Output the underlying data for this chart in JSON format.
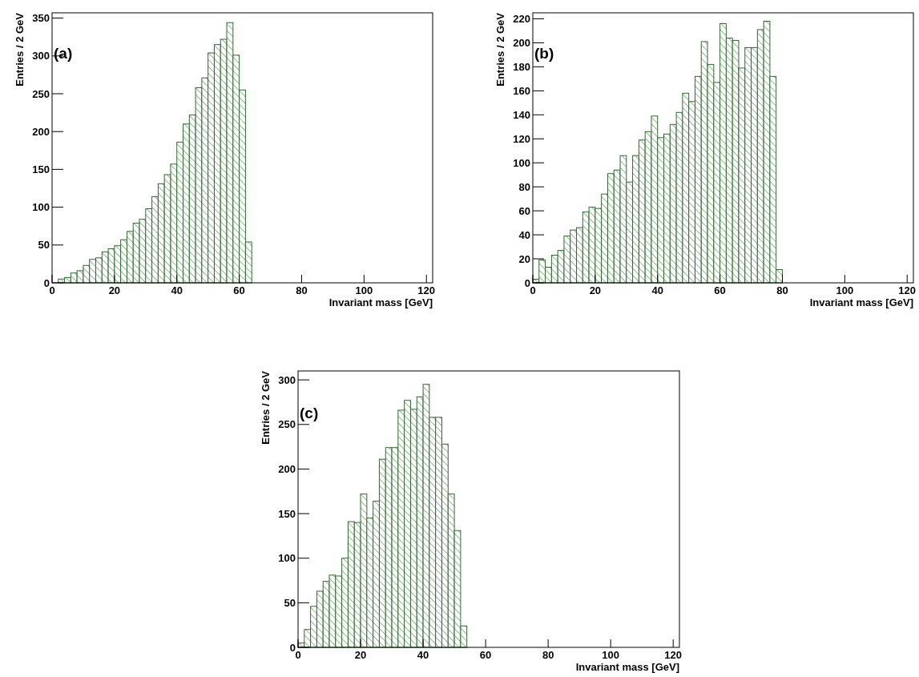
{
  "chart_data": [
    {
      "type": "histogram",
      "annotations": [
        "(a)"
      ],
      "xlabel": "Invariant mass [GeV]",
      "ylabel": "Entries / 2 GeV",
      "color": "#2f6b2f",
      "bins": [
        2,
        4,
        6,
        8,
        10,
        12,
        14,
        16,
        18,
        20,
        22,
        24,
        26,
        28,
        30,
        32,
        34,
        36,
        38,
        40,
        42,
        44,
        46,
        48,
        50,
        52,
        54,
        56,
        58,
        60,
        62,
        64
      ],
      "values": [
        5,
        7,
        13,
        16,
        23,
        31,
        33,
        41,
        45,
        49,
        57,
        68,
        79,
        84,
        98,
        114,
        131,
        143,
        157,
        186,
        210,
        222,
        258,
        271,
        304,
        315,
        322,
        344,
        301,
        255,
        54
      ],
      "xlim": [
        0,
        122
      ],
      "xticks": [
        0,
        20,
        40,
        60,
        80,
        100,
        120
      ],
      "ylim": [
        0,
        357
      ],
      "yticks": [
        0,
        50,
        100,
        150,
        200,
        250,
        300,
        350
      ],
      "grid": false
    },
    {
      "type": "histogram",
      "annotations": [
        "(b)"
      ],
      "xlabel": "Invariant mass [GeV]",
      "ylabel": "Entries / 2 GeV",
      "color": "#2f6b2f",
      "bins": [
        0,
        2,
        4,
        6,
        8,
        10,
        12,
        14,
        16,
        18,
        20,
        22,
        24,
        26,
        28,
        30,
        32,
        34,
        36,
        38,
        40,
        42,
        44,
        46,
        48,
        50,
        52,
        54,
        56,
        58,
        60,
        62,
        64,
        66,
        68,
        70,
        72,
        74,
        76,
        78,
        80
      ],
      "values": [
        3,
        19,
        13,
        23,
        27,
        39,
        44,
        46,
        59,
        63,
        62,
        74,
        91,
        94,
        106,
        84,
        106,
        119,
        126,
        139,
        121,
        124,
        132,
        142,
        158,
        151,
        172,
        201,
        182,
        167,
        216,
        204,
        202,
        179,
        196,
        196,
        211,
        218,
        172,
        11
      ],
      "xlim": [
        0,
        122
      ],
      "xticks": [
        0,
        20,
        40,
        60,
        80,
        100,
        120
      ],
      "ylim": [
        0,
        225
      ],
      "yticks": [
        0,
        20,
        40,
        60,
        80,
        100,
        120,
        140,
        160,
        180,
        200,
        220
      ],
      "grid": false
    },
    {
      "type": "histogram",
      "annotations": [
        "(c)"
      ],
      "xlabel": "Invariant mass [GeV]",
      "ylabel": "Entries / 2 GeV",
      "color": "#2f6b2f",
      "bins": [
        0,
        2,
        4,
        6,
        8,
        10,
        12,
        14,
        16,
        18,
        20,
        22,
        24,
        26,
        28,
        30,
        32,
        34,
        36,
        38,
        40,
        42,
        44,
        46,
        48,
        50,
        52,
        54
      ],
      "values": [
        5,
        20,
        46,
        63,
        74,
        81,
        80,
        100,
        141,
        140,
        172,
        145,
        164,
        211,
        224,
        224,
        266,
        277,
        267,
        281,
        295,
        258,
        258,
        228,
        172,
        131,
        24
      ],
      "xlim": [
        0,
        122
      ],
      "xticks": [
        0,
        20,
        40,
        60,
        80,
        100,
        120
      ],
      "ylim": [
        0,
        310
      ],
      "yticks": [
        0,
        50,
        100,
        150,
        200,
        250,
        300
      ],
      "grid": false
    }
  ]
}
